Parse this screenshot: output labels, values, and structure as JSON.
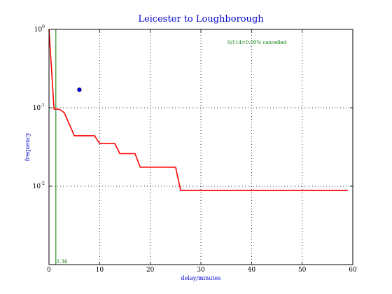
{
  "chart_data": {
    "type": "line",
    "title": "Leicester to Loughborough",
    "xlabel": "delay/minutes",
    "ylabel": "frequency",
    "xlim": [
      0,
      60
    ],
    "ylim": [
      0.001,
      1
    ],
    "yscale": "log",
    "grid": true,
    "x_ticks": [
      0,
      10,
      20,
      30,
      40,
      50,
      60
    ],
    "y_ticks": [
      {
        "value": 1,
        "base": "10",
        "exp": "0"
      },
      {
        "value": 0.1,
        "base": "10",
        "exp": "-1"
      },
      {
        "value": 0.01,
        "base": "10",
        "exp": "-2"
      }
    ],
    "series": [
      {
        "color": "#ff0000",
        "x": [
          0,
          1,
          2,
          3,
          5,
          9,
          10,
          13,
          14,
          17,
          18,
          25,
          26,
          59
        ],
        "y": [
          1.0,
          0.096,
          0.096,
          0.087,
          0.044,
          0.044,
          0.035,
          0.035,
          0.026,
          0.026,
          0.0175,
          0.0175,
          0.0088,
          0.0088
        ]
      }
    ],
    "points": [
      {
        "x": 6,
        "y": 0.17,
        "color": "#0000ff"
      }
    ],
    "vlines": [
      {
        "x": 1.36,
        "label": "1.36",
        "color": "#007700"
      }
    ],
    "annotation": {
      "text": "0/114=0.00% cancelled",
      "color": "#007700"
    }
  }
}
